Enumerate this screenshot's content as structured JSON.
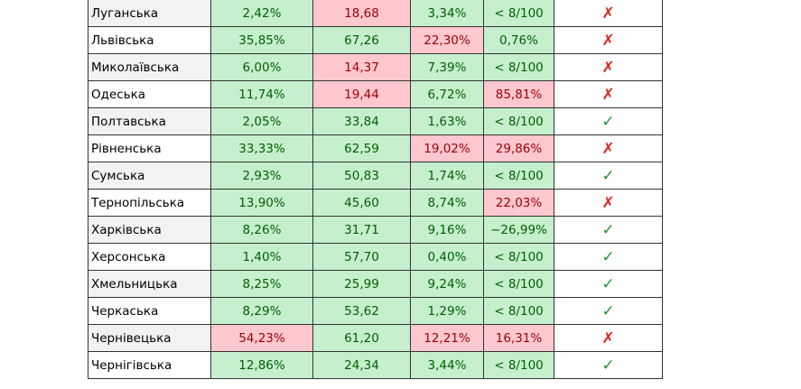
{
  "colors": {
    "good_fill": "#c6efce",
    "good_text": "#006100",
    "bad_fill": "#ffc7ce",
    "bad_text": "#9c0006",
    "check": "#1f9a38",
    "cross": "#e0241c"
  },
  "rows": [
    {
      "name": "Луганська",
      "c1": "2,42%",
      "c2": "18,68",
      "c3": "3,34%",
      "c4": "< 8/100",
      "mark": "✗",
      "s1": "good",
      "s2": "bad",
      "s3": "good",
      "s4": "good",
      "ok": false
    },
    {
      "name": "Львівська",
      "c1": "35,85%",
      "c2": "67,26",
      "c3": "22,30%",
      "c4": "0,76%",
      "mark": "✗",
      "s1": "good",
      "s2": "good",
      "s3": "bad",
      "s4": "good",
      "ok": false
    },
    {
      "name": "Миколаївська",
      "c1": "6,00%",
      "c2": "14,37",
      "c3": "7,39%",
      "c4": "< 8/100",
      "mark": "✗",
      "s1": "good",
      "s2": "bad",
      "s3": "good",
      "s4": "good",
      "ok": false
    },
    {
      "name": "Одеська",
      "c1": "11,74%",
      "c2": "19,44",
      "c3": "6,72%",
      "c4": "85,81%",
      "mark": "✗",
      "s1": "good",
      "s2": "bad",
      "s3": "good",
      "s4": "bad",
      "ok": false
    },
    {
      "name": "Полтавська",
      "c1": "2,05%",
      "c2": "33,84",
      "c3": "1,63%",
      "c4": "< 8/100",
      "mark": "✓",
      "s1": "good",
      "s2": "good",
      "s3": "good",
      "s4": "good",
      "ok": true
    },
    {
      "name": "Рівненська",
      "c1": "33,33%",
      "c2": "62,59",
      "c3": "19,02%",
      "c4": "29,86%",
      "mark": "✗",
      "s1": "good",
      "s2": "good",
      "s3": "bad",
      "s4": "bad",
      "ok": false
    },
    {
      "name": "Сумська",
      "c1": "2,93%",
      "c2": "50,83",
      "c3": "1,74%",
      "c4": "< 8/100",
      "mark": "✓",
      "s1": "good",
      "s2": "good",
      "s3": "good",
      "s4": "good",
      "ok": true
    },
    {
      "name": "Тернопільська",
      "c1": "13,90%",
      "c2": "45,60",
      "c3": "8,74%",
      "c4": "22,03%",
      "mark": "✗",
      "s1": "good",
      "s2": "good",
      "s3": "good",
      "s4": "bad",
      "ok": false
    },
    {
      "name": "Харківська",
      "c1": "8,26%",
      "c2": "31,71",
      "c3": "9,16%",
      "c4": "−26,99%",
      "mark": "✓",
      "s1": "good",
      "s2": "good",
      "s3": "good",
      "s4": "good",
      "ok": true
    },
    {
      "name": "Херсонська",
      "c1": "1,40%",
      "c2": "57,70",
      "c3": "0,40%",
      "c4": "< 8/100",
      "mark": "✓",
      "s1": "good",
      "s2": "good",
      "s3": "good",
      "s4": "good",
      "ok": true
    },
    {
      "name": "Хмельницька",
      "c1": "8,25%",
      "c2": "25,99",
      "c3": "9,24%",
      "c4": "< 8/100",
      "mark": "✓",
      "s1": "good",
      "s2": "good",
      "s3": "good",
      "s4": "good",
      "ok": true
    },
    {
      "name": "Черкаська",
      "c1": "8,29%",
      "c2": "53,62",
      "c3": "1,29%",
      "c4": "< 8/100",
      "mark": "✓",
      "s1": "good",
      "s2": "good",
      "s3": "good",
      "s4": "good",
      "ok": true
    },
    {
      "name": "Чернівецька",
      "c1": "54,23%",
      "c2": "61,20",
      "c3": "12,21%",
      "c4": "16,31%",
      "mark": "✗",
      "s1": "bad",
      "s2": "good",
      "s3": "bad",
      "s4": "bad",
      "ok": false
    },
    {
      "name": "Чернігівська",
      "c1": "12,86%",
      "c2": "24,34",
      "c3": "3,44%",
      "c4": "< 8/100",
      "mark": "✓",
      "s1": "good",
      "s2": "good",
      "s3": "good",
      "s4": "good",
      "ok": true
    }
  ]
}
